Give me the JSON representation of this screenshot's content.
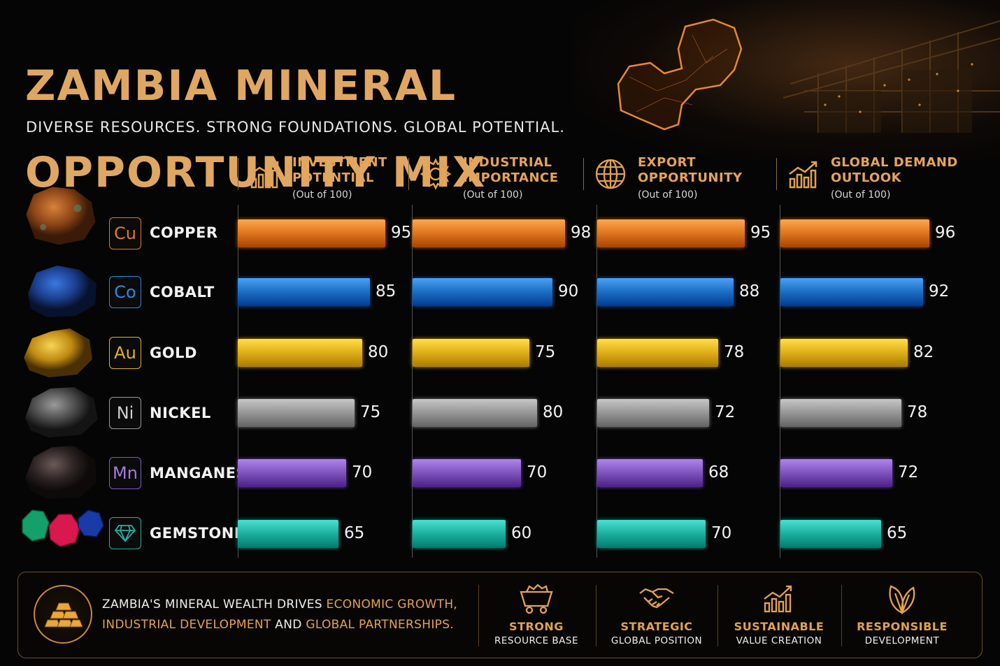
{
  "title_line1": "ZAMBIA MINERAL",
  "title_line2": "OPPORTUNITY MIX",
  "subtitle": "DIVERSE RESOURCES. STRONG FOUNDATIONS. GLOBAL POTENTIAL.",
  "columns": [
    {
      "line1": "INVESTMENT",
      "line2": "POTENTIAL",
      "unit": "(Out of 100)",
      "icon": "growth-chart-icon"
    },
    {
      "line1": "INDUSTRIAL",
      "line2": "IMPORTANCE",
      "unit": "(Out of 100)",
      "icon": "gear-icon"
    },
    {
      "line1": "EXPORT",
      "line2": "OPPORTUNITY",
      "unit": "(Out of 100)",
      "icon": "globe-icon"
    },
    {
      "line1": "GLOBAL DEMAND",
      "line2": "OUTLOOK",
      "unit": "(Out of 100)",
      "icon": "growth-chart-icon"
    }
  ],
  "minerals": [
    {
      "symbol": "Cu",
      "name": "COPPER",
      "color": "#e07a22"
    },
    {
      "symbol": "Co",
      "name": "COBALT",
      "color": "#1e72c8"
    },
    {
      "symbol": "Au",
      "name": "GOLD",
      "color": "#e2b21c"
    },
    {
      "symbol": "Ni",
      "name": "NICKEL",
      "color": "#9a9a9a"
    },
    {
      "symbol": "Mn",
      "name": "MANGANESE",
      "color": "#8258c0"
    },
    {
      "symbol": "",
      "name": "GEMSTONES",
      "color": "#1fb3a3",
      "icon": "diamond-icon"
    }
  ],
  "chart_data": {
    "type": "bar",
    "orientation": "horizontal",
    "ylim": [
      0,
      100
    ],
    "categories": [
      "COPPER",
      "COBALT",
      "GOLD",
      "NICKEL",
      "MANGANESE",
      "GEMSTONES"
    ],
    "series": [
      {
        "name": "INVESTMENT POTENTIAL",
        "values": [
          95,
          85,
          80,
          75,
          70,
          65
        ]
      },
      {
        "name": "INDUSTRIAL IMPORTANCE",
        "values": [
          98,
          90,
          75,
          80,
          70,
          60
        ]
      },
      {
        "name": "EXPORT OPPORTUNITY",
        "values": [
          95,
          88,
          78,
          72,
          68,
          70
        ]
      },
      {
        "name": "GLOBAL DEMAND OUTLOOK",
        "values": [
          96,
          92,
          82,
          78,
          72,
          65
        ]
      }
    ]
  },
  "footer": {
    "text_a": "ZAMBIA'S MINERAL WEALTH DRIVES ",
    "text_hl1": "ECONOMIC GROWTH,",
    "text_hl2": "INDUSTRIAL DEVELOPMENT",
    "text_b": " AND ",
    "text_hl3": "GLOBAL PARTNERSHIPS.",
    "items": [
      {
        "t1": "STRONG",
        "t2": "RESOURCE BASE",
        "icon": "mine-cart-icon"
      },
      {
        "t1": "STRATEGIC",
        "t2": "GLOBAL POSITION",
        "icon": "handshake-icon"
      },
      {
        "t1": "SUSTAINABLE",
        "t2": "VALUE CREATION",
        "icon": "growth-chart-icon"
      },
      {
        "t1": "RESPONSIBLE",
        "t2": "DEVELOPMENT",
        "icon": "leaf-icon"
      }
    ]
  }
}
